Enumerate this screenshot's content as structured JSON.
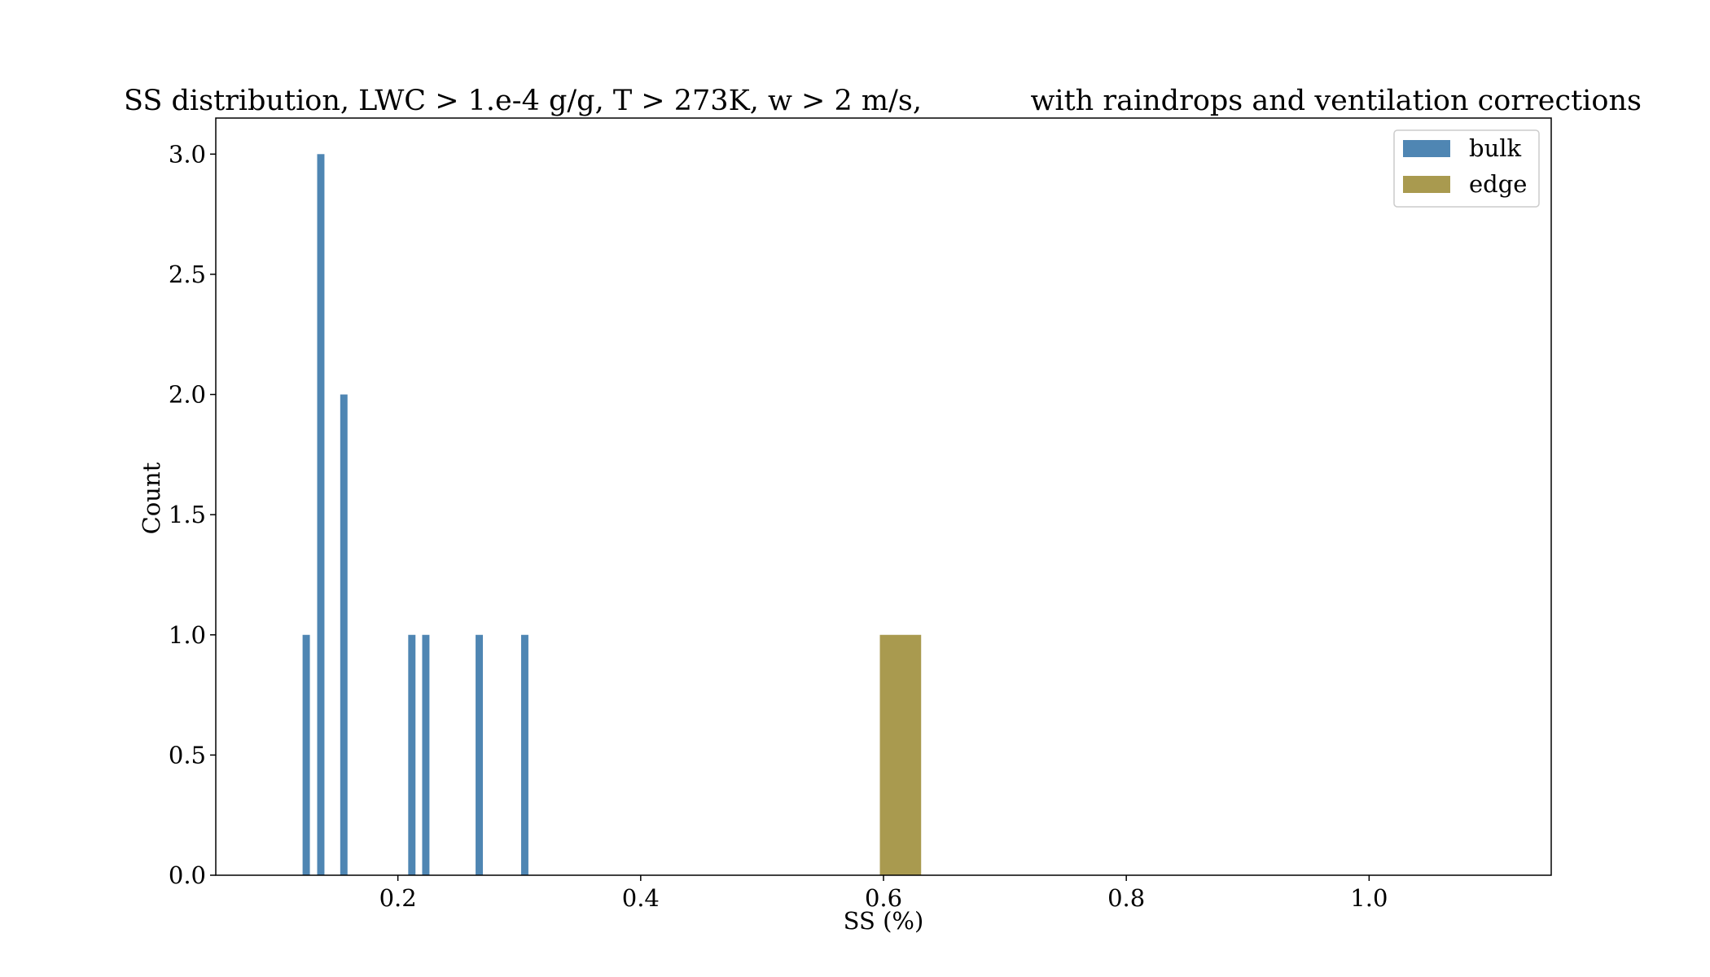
{
  "chart_data": {
    "type": "bar",
    "title": "SS distribution, LWC > 1.e-4 g/g, T > 273K, w > 2 m/s,            with raindrops and ventilation corrections",
    "xlabel": "SS (%)",
    "ylabel": "Count",
    "xlim": [
      0.05,
      1.15
    ],
    "ylim": [
      0,
      3.15
    ],
    "x_ticks": [
      0.2,
      0.4,
      0.6,
      0.8,
      1.0
    ],
    "x_tick_labels": [
      "0.2",
      "0.4",
      "0.6",
      "0.8",
      "1.0"
    ],
    "y_ticks": [
      0.0,
      0.5,
      1.0,
      1.5,
      2.0,
      2.5,
      3.0
    ],
    "y_tick_labels": [
      "0.0",
      "0.5",
      "1.0",
      "1.5",
      "2.0",
      "2.5",
      "3.0"
    ],
    "grid": false,
    "legend_position": "top-right",
    "series": [
      {
        "name": "bulk",
        "color": "#4f86b3",
        "bins": [
          {
            "x0": 0.1215,
            "x1": 0.1275,
            "count": 1
          },
          {
            "x0": 0.1335,
            "x1": 0.1395,
            "count": 3
          },
          {
            "x0": 0.1525,
            "x1": 0.1585,
            "count": 2
          },
          {
            "x0": 0.2085,
            "x1": 0.2145,
            "count": 1
          },
          {
            "x0": 0.22,
            "x1": 0.226,
            "count": 1
          },
          {
            "x0": 0.264,
            "x1": 0.27,
            "count": 1
          },
          {
            "x0": 0.3015,
            "x1": 0.3075,
            "count": 1
          }
        ]
      },
      {
        "name": "edge",
        "color": "#a99a4f",
        "bins": [
          {
            "x0": 0.597,
            "x1": 0.631,
            "count": 1
          }
        ]
      }
    ]
  }
}
